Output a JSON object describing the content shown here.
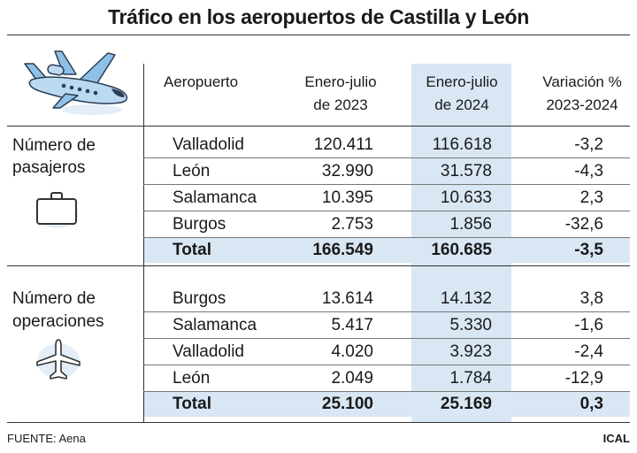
{
  "title": "Tráfico en los aeropuertos de Castilla y León",
  "header": {
    "col_airport": "Aeropuerto",
    "col_2023_line1": "Enero-julio",
    "col_2023_line2": "de 2023",
    "col_2024_line1": "Enero-julio",
    "col_2024_line2": "de 2024",
    "col_var_line1": "Variación %",
    "col_var_line2": "2023-2024"
  },
  "passengers": {
    "label_line1": "Número de",
    "label_line2": "pasajeros",
    "icon": "suitcase-icon",
    "rows": [
      {
        "airport": "Valladolid",
        "y2023": "120.411",
        "y2024": "116.618",
        "var": "-3,2"
      },
      {
        "airport": "León",
        "y2023": "32.990",
        "y2024": "31.578",
        "var": "-4,3"
      },
      {
        "airport": "Salamanca",
        "y2023": "10.395",
        "y2024": "10.633",
        "var": "2,3"
      },
      {
        "airport": "Burgos",
        "y2023": "2.753",
        "y2024": "1.856",
        "var": "-32,6"
      }
    ],
    "total": {
      "label": "Total",
      "y2023": "166.549",
      "y2024": "160.685",
      "var": "-3,5"
    }
  },
  "operations": {
    "label_line1": "Número de",
    "label_line2": "operaciones",
    "icon": "airplane-icon",
    "rows": [
      {
        "airport": "Burgos",
        "y2023": "13.614",
        "y2024": "14.132",
        "var": "3,8"
      },
      {
        "airport": "Salamanca",
        "y2023": "5.417",
        "y2024": "5.330",
        "var": "-1,6"
      },
      {
        "airport": "Valladolid",
        "y2023": "4.020",
        "y2024": "3.923",
        "var": "-2,4"
      },
      {
        "airport": "León",
        "y2023": "2.049",
        "y2024": "1.784",
        "var": "-12,9"
      }
    ],
    "total": {
      "label": "Total",
      "y2023": "25.100",
      "y2024": "25.169",
      "var": "0,3"
    }
  },
  "colors": {
    "highlight": "#d9e6f4",
    "icon_blue": "#8fc0e8"
  },
  "footer": {
    "source": "FUENTE: Aena",
    "agency": "ICAL"
  }
}
